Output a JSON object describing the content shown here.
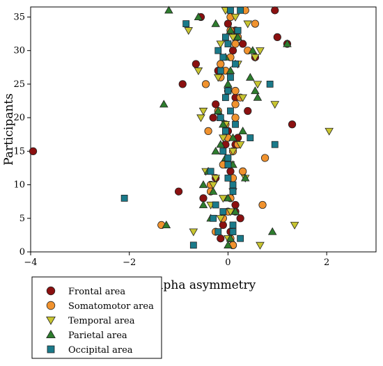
{
  "chart_data": {
    "type": "scatter",
    "xlabel": "Alpha asymmetry",
    "ylabel": "Participants",
    "xlim": [
      -4,
      3
    ],
    "ylim": [
      0,
      36.5
    ],
    "x_ticks": [
      -4,
      -2,
      0,
      2
    ],
    "y_ticks": [
      0,
      5,
      10,
      15,
      20,
      25,
      30,
      35
    ],
    "x_tick_labels": [
      "−4",
      "−2",
      "0",
      "2"
    ],
    "y_tick_labels": [
      "0",
      "5",
      "10",
      "15",
      "20",
      "25",
      "30",
      "35"
    ],
    "grid": false,
    "legend_position": "bottom-left outside",
    "series": [
      {
        "name": "Frontal area",
        "marker": "circle",
        "color": "#8B1010",
        "points": [
          [
            -3.95,
            15
          ],
          [
            -1.0,
            9
          ],
          [
            -0.92,
            25
          ],
          [
            -0.65,
            28
          ],
          [
            -0.55,
            35
          ],
          [
            -0.5,
            8
          ],
          [
            -0.35,
            10
          ],
          [
            -0.3,
            20
          ],
          [
            -0.25,
            11
          ],
          [
            -0.25,
            22
          ],
          [
            -0.2,
            27
          ],
          [
            -0.15,
            2
          ],
          [
            -0.1,
            4
          ],
          [
            -0.05,
            16
          ],
          [
            -0.05,
            13
          ],
          [
            0.0,
            18
          ],
          [
            0.0,
            24
          ],
          [
            0.0,
            34
          ],
          [
            0.05,
            3
          ],
          [
            0.05,
            12
          ],
          [
            0.1,
            30
          ],
          [
            0.1,
            1
          ],
          [
            0.15,
            33
          ],
          [
            0.15,
            6
          ],
          [
            0.15,
            7
          ],
          [
            0.15,
            16
          ],
          [
            0.15,
            23
          ],
          [
            0.2,
            17
          ],
          [
            0.25,
            5
          ],
          [
            0.3,
            31
          ],
          [
            0.4,
            21
          ],
          [
            0.55,
            29
          ],
          [
            0.95,
            36
          ],
          [
            1.0,
            32
          ],
          [
            1.2,
            31
          ],
          [
            1.3,
            19
          ]
        ]
      },
      {
        "name": "Somatomotor area",
        "marker": "circle",
        "color": "#F0922E",
        "points": [
          [
            -1.35,
            4
          ],
          [
            -0.45,
            25
          ],
          [
            -0.4,
            18
          ],
          [
            -0.35,
            10
          ],
          [
            -0.35,
            9
          ],
          [
            -0.25,
            3
          ],
          [
            -0.2,
            21
          ],
          [
            -0.15,
            26
          ],
          [
            -0.15,
            28
          ],
          [
            -0.1,
            13
          ],
          [
            -0.05,
            27
          ],
          [
            0.0,
            6
          ],
          [
            0.05,
            2
          ],
          [
            0.05,
            29
          ],
          [
            0.05,
            35
          ],
          [
            0.05,
            8
          ],
          [
            0.1,
            15
          ],
          [
            0.1,
            11
          ],
          [
            0.1,
            1
          ],
          [
            0.15,
            22
          ],
          [
            0.15,
            24
          ],
          [
            0.2,
            32
          ],
          [
            0.2,
            16
          ],
          [
            0.25,
            23
          ],
          [
            0.3,
            12
          ],
          [
            0.35,
            36
          ],
          [
            0.4,
            30
          ],
          [
            0.55,
            34
          ],
          [
            0.7,
            7
          ],
          [
            0.75,
            14
          ],
          [
            0.15,
            20
          ],
          [
            0.0,
            17
          ],
          [
            -0.05,
            19
          ],
          [
            0.05,
            33
          ],
          [
            0.15,
            31
          ],
          [
            -0.1,
            5
          ]
        ]
      },
      {
        "name": "Temporal area",
        "marker": "triangle-down",
        "color": "#C8C530",
        "points": [
          [
            -0.8,
            33
          ],
          [
            -0.7,
            3
          ],
          [
            -0.6,
            27
          ],
          [
            -0.5,
            21
          ],
          [
            -0.55,
            20
          ],
          [
            -0.45,
            12
          ],
          [
            -0.35,
            7
          ],
          [
            -0.3,
            10
          ],
          [
            -0.2,
            26
          ],
          [
            -0.15,
            5
          ],
          [
            -0.1,
            17
          ],
          [
            -0.05,
            36
          ],
          [
            0.05,
            6
          ],
          [
            0.1,
            15
          ],
          [
            0.1,
            9
          ],
          [
            0.1,
            32
          ],
          [
            0.2,
            28
          ],
          [
            0.25,
            16
          ],
          [
            0.3,
            23
          ],
          [
            0.4,
            34
          ],
          [
            0.55,
            29
          ],
          [
            0.6,
            25
          ],
          [
            0.65,
            30
          ],
          [
            0.65,
            1
          ],
          [
            0.95,
            22
          ],
          [
            1.35,
            4
          ],
          [
            2.05,
            18
          ],
          [
            -0.05,
            19
          ],
          [
            0.05,
            13
          ],
          [
            0.15,
            35
          ],
          [
            -0.25,
            11
          ],
          [
            0.0,
            2
          ],
          [
            -0.15,
            31
          ],
          [
            0.35,
            11
          ],
          [
            -0.1,
            8
          ],
          [
            0.0,
            24
          ]
        ]
      },
      {
        "name": "Parietal area",
        "marker": "triangle-up",
        "color": "#2E7D2E",
        "points": [
          [
            -1.3,
            22
          ],
          [
            -1.2,
            36
          ],
          [
            -1.25,
            4
          ],
          [
            -0.6,
            35
          ],
          [
            -0.5,
            10
          ],
          [
            -0.5,
            7
          ],
          [
            -0.4,
            12
          ],
          [
            -0.35,
            5
          ],
          [
            -0.3,
            9
          ],
          [
            -0.25,
            34
          ],
          [
            -0.2,
            21
          ],
          [
            -0.15,
            16
          ],
          [
            -0.1,
            19
          ],
          [
            -0.05,
            14
          ],
          [
            -0.05,
            29
          ],
          [
            0.0,
            8
          ],
          [
            0.0,
            1
          ],
          [
            0.05,
            27
          ],
          [
            0.05,
            2
          ],
          [
            0.1,
            17
          ],
          [
            0.15,
            6
          ],
          [
            0.2,
            32
          ],
          [
            0.35,
            11
          ],
          [
            0.45,
            26
          ],
          [
            0.5,
            30
          ],
          [
            0.55,
            24
          ],
          [
            0.6,
            23
          ],
          [
            0.9,
            3
          ],
          [
            1.2,
            31
          ],
          [
            0.0,
            25
          ],
          [
            -0.25,
            15
          ],
          [
            0.15,
            28
          ],
          [
            -0.15,
            20
          ],
          [
            0.3,
            18
          ],
          [
            0.1,
            13
          ],
          [
            0.05,
            33
          ]
        ]
      },
      {
        "name": "Occipital area",
        "marker": "square",
        "color": "#1A7A8A",
        "points": [
          [
            -2.1,
            8
          ],
          [
            -0.85,
            34
          ],
          [
            -0.7,
            1
          ],
          [
            -0.35,
            12
          ],
          [
            -0.3,
            5
          ],
          [
            -0.25,
            7
          ],
          [
            -0.2,
            30
          ],
          [
            -0.2,
            3
          ],
          [
            -0.15,
            20
          ],
          [
            -0.15,
            27
          ],
          [
            -0.1,
            29
          ],
          [
            -0.1,
            15
          ],
          [
            -0.05,
            32
          ],
          [
            -0.05,
            18
          ],
          [
            0.0,
            14
          ],
          [
            0.0,
            31
          ],
          [
            0.0,
            11
          ],
          [
            0.0,
            24
          ],
          [
            0.05,
            26
          ],
          [
            0.05,
            36
          ],
          [
            0.05,
            21
          ],
          [
            0.1,
            9
          ],
          [
            0.1,
            3
          ],
          [
            0.1,
            4
          ],
          [
            0.15,
            19
          ],
          [
            0.15,
            28
          ],
          [
            0.2,
            33
          ],
          [
            0.25,
            2
          ],
          [
            0.45,
            17
          ],
          [
            0.85,
            25
          ],
          [
            0.95,
            16
          ],
          [
            -0.05,
            23
          ],
          [
            0.0,
            13
          ],
          [
            0.1,
            10
          ],
          [
            -0.1,
            6
          ],
          [
            0.25,
            36
          ]
        ]
      }
    ]
  }
}
